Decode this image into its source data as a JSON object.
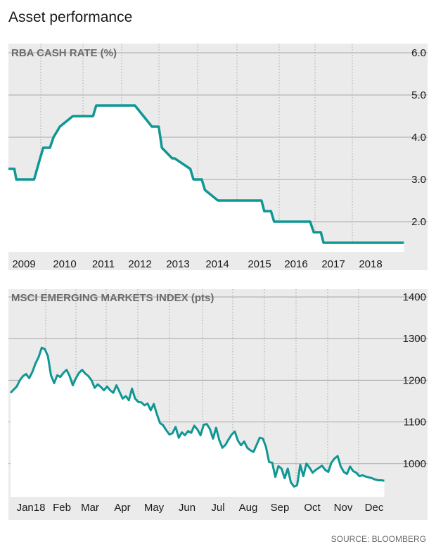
{
  "title": "Asset performance",
  "source": "SOURCE: BLOOMBERG",
  "colors": {
    "line": "#0f9794",
    "panel_bg": "#ebebeb",
    "grid": "#a7a7a7",
    "text": "#1a1a1a",
    "muted": "#6b6b6b"
  },
  "chart_data": [
    {
      "type": "area",
      "title": "RBA CASH RATE (%)",
      "x_tick_labels": [
        "2009",
        "2010",
        "2011",
        "2012",
        "2013",
        "2014",
        "2015",
        "2016",
        "2017",
        "2018"
      ],
      "y_tick_labels": [
        "6.0",
        "5.0",
        "4.0",
        "3.0",
        "2.0"
      ],
      "ylim": [
        1.0,
        6.0
      ],
      "xlim": [
        2008.7,
        2019.3
      ],
      "grid": true,
      "series": [
        {
          "x": [
            2008.7,
            2008.85,
            2008.9,
            2009.35,
            2009.5,
            2009.58,
            2009.75,
            2009.84,
            2010.0,
            2010.33,
            2010.42,
            2010.84,
            2010.92,
            2011.84,
            2011.9,
            2012.33,
            2012.42,
            2012.5,
            2012.58,
            2012.84,
            2012.9,
            2013.3,
            2013.38,
            2013.59,
            2013.67,
            2014.0,
            2015.1,
            2015.17,
            2015.34,
            2015.42,
            2015.65,
            2016.1,
            2016.33,
            2016.42,
            2016.6,
            2016.67,
            2018.0,
            2018.7
          ],
          "y": [
            3.25,
            3.25,
            3.0,
            3.0,
            3.5,
            3.75,
            3.75,
            4.0,
            4.25,
            4.5,
            4.5,
            4.5,
            4.75,
            4.75,
            4.75,
            4.25,
            4.25,
            4.25,
            3.75,
            3.5,
            3.5,
            3.25,
            3.0,
            3.0,
            2.75,
            2.5,
            2.5,
            2.25,
            2.25,
            2.0,
            2.0,
            2.0,
            2.0,
            1.75,
            1.75,
            1.5,
            1.5,
            1.5
          ]
        }
      ]
    },
    {
      "type": "area",
      "title": "MSCI EMERGING MARKETS INDEX (pts)",
      "x_tick_labels": [
        "Jan18",
        "Feb",
        "Mar",
        "Apr",
        "May",
        "Jun",
        "Jul",
        "Aug",
        "Sep",
        "Oct",
        "Nov",
        "Dec"
      ],
      "y_tick_labels": [
        "1400",
        "1300",
        "1200",
        "1100",
        "1000"
      ],
      "ylim": [
        900,
        1400
      ],
      "xlim": [
        0,
        363
      ],
      "grid": true,
      "series": [
        {
          "x": [
            2,
            8,
            11,
            14,
            17,
            20,
            23,
            26,
            29,
            32,
            35,
            38,
            41,
            44,
            47,
            50,
            53,
            56,
            59,
            62,
            65,
            68,
            71,
            74,
            77,
            80,
            83,
            86,
            89,
            92,
            95,
            98,
            101,
            104,
            107,
            110,
            113,
            116,
            119,
            122,
            125,
            128,
            131,
            134,
            137,
            140,
            143,
            146,
            149,
            152,
            155,
            158,
            161,
            164,
            167,
            170,
            173,
            176,
            179,
            182,
            185,
            188,
            191,
            194,
            197,
            200,
            203,
            206,
            209,
            212,
            215,
            218,
            221,
            224,
            227,
            230,
            233,
            236,
            239,
            242,
            245,
            248,
            251,
            254,
            257,
            260,
            263,
            266,
            269,
            272,
            275,
            278,
            281,
            284,
            287,
            290,
            293,
            296,
            299,
            302,
            305,
            308,
            311,
            314,
            317,
            320,
            323,
            326,
            329,
            332,
            335,
            338,
            341,
            344,
            347,
            350,
            353,
            356,
            359,
            362
          ],
          "y": [
            1170,
            1185,
            1200,
            1210,
            1215,
            1205,
            1220,
            1240,
            1255,
            1278,
            1275,
            1258,
            1212,
            1193,
            1212,
            1208,
            1218,
            1225,
            1210,
            1188,
            1205,
            1218,
            1225,
            1216,
            1210,
            1200,
            1182,
            1190,
            1184,
            1176,
            1185,
            1176,
            1170,
            1188,
            1172,
            1156,
            1162,
            1152,
            1180,
            1156,
            1148,
            1147,
            1140,
            1144,
            1128,
            1143,
            1118,
            1097,
            1092,
            1080,
            1070,
            1073,
            1088,
            1062,
            1075,
            1068,
            1078,
            1074,
            1091,
            1082,
            1068,
            1093,
            1095,
            1083,
            1060,
            1086,
            1057,
            1038,
            1045,
            1058,
            1070,
            1077,
            1055,
            1044,
            1053,
            1038,
            1032,
            1028,
            1045,
            1062,
            1060,
            1040,
            1004,
            1002,
            968,
            994,
            988,
            965,
            988,
            955,
            945,
            948,
            997,
            970,
            1000,
            990,
            978,
            985,
            990,
            995,
            985,
            980,
            1002,
            1012,
            1018,
            993,
            980,
            975,
            993,
            982,
            978,
            970,
            972,
            969,
            967,
            965,
            962,
            960,
            960,
            959
          ]
        }
      ]
    }
  ]
}
